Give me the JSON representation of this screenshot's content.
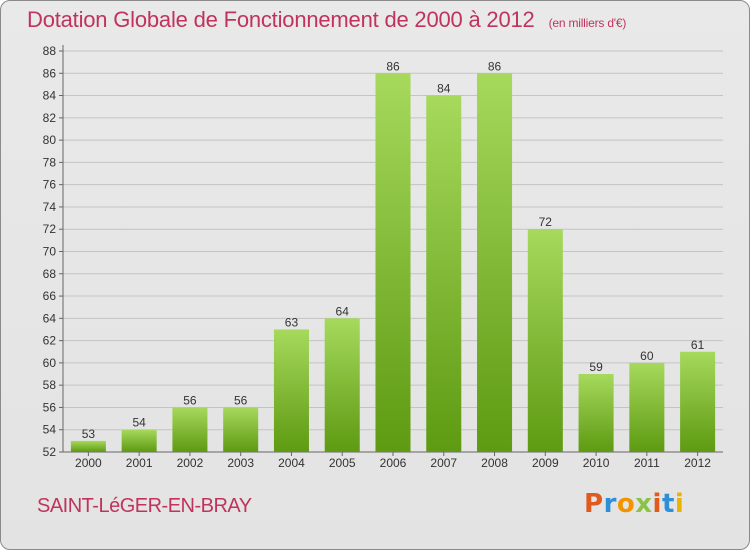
{
  "title": "Dotation Globale de Fonctionnement de 2000 à 2012",
  "unit_note": "(en milliers d'€)",
  "commune": "SAINT-LéGER-EN-BRAY",
  "logo": {
    "letters": [
      "P",
      "r",
      "o",
      "x",
      "i",
      "t",
      "i"
    ],
    "colors": [
      "#e05a1e",
      "#2d8fd8",
      "#f29400",
      "#8bc34a",
      "#e05a1e",
      "#2d8fd8",
      "#e9b400"
    ]
  },
  "colors": {
    "title": "#c0335e",
    "bar_light": "#a6d95c",
    "bar_dark": "#5e9a12",
    "grid": "#c4c4c4",
    "axis": "#666666"
  },
  "chart_data": {
    "type": "bar",
    "categories": [
      "2000",
      "2001",
      "2002",
      "2003",
      "2004",
      "2005",
      "2006",
      "2007",
      "2008",
      "2009",
      "2010",
      "2011",
      "2012"
    ],
    "values": [
      53,
      54,
      56,
      56,
      63,
      64,
      86,
      84,
      86,
      72,
      59,
      60,
      61
    ],
    "ylim": [
      52,
      88
    ],
    "yticks": [
      52,
      54,
      56,
      58,
      60,
      62,
      64,
      66,
      68,
      70,
      72,
      74,
      76,
      78,
      80,
      82,
      84,
      86,
      88
    ],
    "grid": true,
    "data_labels": true
  }
}
